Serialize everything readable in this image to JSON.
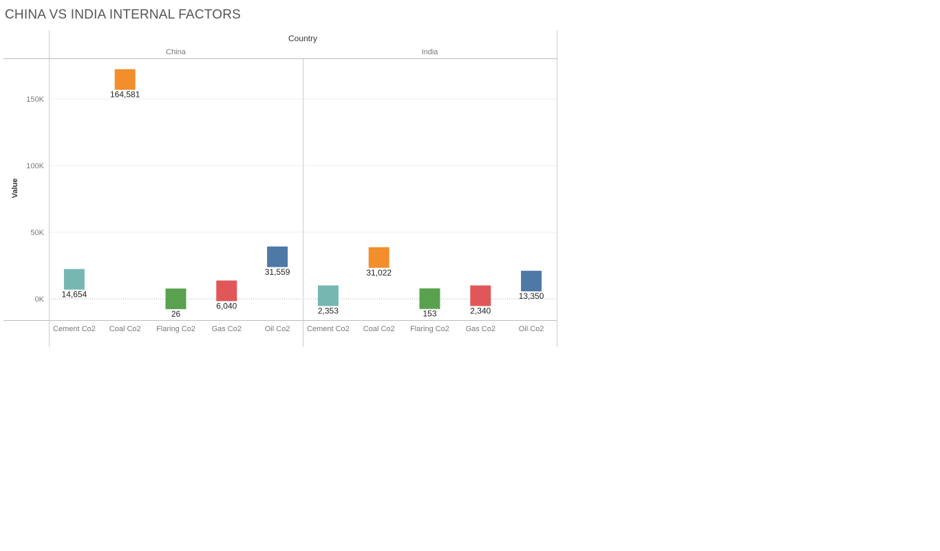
{
  "chart_data": {
    "type": "scatter",
    "mark": "square",
    "title": "CHINA VS INDIA INTERNAL FACTORS",
    "column_header": "Country",
    "ylabel": "Value",
    "ylim": [
      -16000,
      180000
    ],
    "yticks": [
      0,
      50000,
      100000,
      150000
    ],
    "ytick_labels": [
      "0K",
      "50K",
      "100K",
      "150K"
    ],
    "grid": true,
    "colors": {
      "Cement Co2": "#76b7b2",
      "Coal Co2": "#f28e2b",
      "Flaring Co2": "#59a14f",
      "Gas Co2": "#e15759",
      "Oil Co2": "#4e79a7"
    },
    "panels": [
      {
        "name": "China",
        "categories": [
          "Cement Co2",
          "Coal Co2",
          "Flaring Co2",
          "Gas Co2",
          "Oil Co2"
        ],
        "values": [
          14654,
          164581,
          26,
          6040,
          31559
        ],
        "labels": [
          "14,654",
          "164,581",
          "26",
          "6,040",
          "31,559"
        ]
      },
      {
        "name": "India",
        "categories": [
          "Cement Co2",
          "Coal Co2",
          "Flaring Co2",
          "Gas Co2",
          "Oil Co2"
        ],
        "values": [
          2353,
          31022,
          153,
          2340,
          13350
        ],
        "labels": [
          "2,353",
          "31,022",
          "153",
          "2,340",
          "13,350"
        ]
      }
    ]
  }
}
